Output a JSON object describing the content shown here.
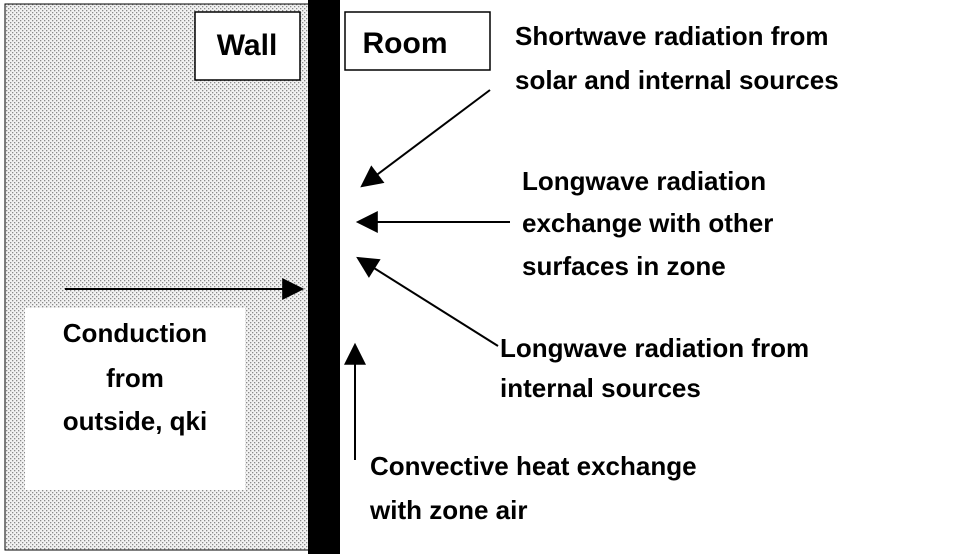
{
  "wall_label": "Wall",
  "room_label": "Room",
  "shortwave": {
    "lines": [
      "Shortwave radiation from",
      "solar and internal sources"
    ]
  },
  "longwave_exchange": {
    "lines": [
      "Longwave radiation",
      "exchange with other",
      "surfaces in zone"
    ]
  },
  "conduction": {
    "lines": [
      "Conduction",
      "from",
      "outside, qki"
    ]
  },
  "longwave_internal": {
    "lines": [
      "Longwave radiation from",
      "internal sources"
    ]
  },
  "convective": {
    "lines": [
      "Convective heat exchange",
      "with zone air"
    ]
  }
}
